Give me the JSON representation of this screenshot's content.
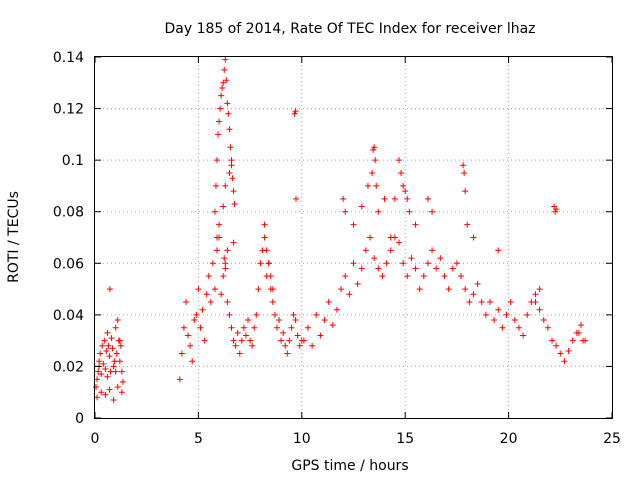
{
  "chart_data": {
    "type": "scatter",
    "title": "Day 185 of 2014, Rate Of TEC Index for receiver lhaz",
    "xlabel": "GPS time / hours",
    "ylabel": "ROTI / TECUs",
    "xlim": [
      0,
      25
    ],
    "ylim": [
      0,
      0.14
    ],
    "xticks": [
      0,
      5,
      10,
      15,
      20,
      25
    ],
    "yticks": [
      0,
      0.02,
      0.04,
      0.06,
      0.08,
      0.1,
      0.12,
      0.14
    ],
    "grid": true,
    "marker": "+",
    "color": "#ff0000",
    "series": [
      {
        "x": [
          0.05,
          0.1,
          0.15,
          0.2,
          0.25,
          0.3,
          0.35,
          0.4,
          0.45,
          0.5,
          0.55,
          0.6,
          0.65,
          0.7,
          0.75,
          0.8,
          0.85,
          0.9,
          0.95,
          1.0,
          1.05,
          1.1,
          1.15,
          1.2,
          1.25,
          1.3,
          1.35,
          0.1,
          0.3,
          0.5,
          0.7,
          0.72,
          0.9,
          1.1,
          1.3,
          0.2,
          0.6,
          1.0,
          1.2,
          4.1,
          4.2,
          4.3,
          4.4,
          4.5,
          4.6,
          4.7,
          4.8,
          4.9,
          5.0,
          5.1,
          5.2,
          5.3,
          5.4,
          5.5,
          5.6,
          5.7,
          5.8,
          5.9,
          6.0,
          6.1,
          6.2,
          6.3,
          6.4,
          6.5,
          6.6,
          6.7,
          6.8,
          6.9,
          7.0,
          7.1,
          7.2,
          7.3,
          7.4,
          7.5,
          7.6,
          7.7,
          7.8,
          7.9,
          8.0,
          8.1,
          8.2,
          8.3,
          8.4,
          8.5,
          8.6,
          8.7,
          8.8,
          8.9,
          9.0,
          9.1,
          9.2,
          9.3,
          9.4,
          9.5,
          9.6,
          9.7,
          9.8,
          9.9,
          10.0,
          5.8,
          5.85,
          5.9,
          5.95,
          6.0,
          6.05,
          6.1,
          6.15,
          6.2,
          6.25,
          6.3,
          6.35,
          6.4,
          6.45,
          6.5,
          6.55,
          6.6,
          6.65,
          6.7,
          6.75,
          5.9,
          6.0,
          6.2,
          6.3,
          6.5,
          6.6,
          6.7,
          6.25,
          6.3,
          6.4,
          8.2,
          8.3,
          8.4,
          8.5,
          8.6,
          9.65,
          9.7,
          9.72,
          10.1,
          10.3,
          10.5,
          10.7,
          10.9,
          11.1,
          11.3,
          11.5,
          11.7,
          11.9,
          12.1,
          12.3,
          12.5,
          12.7,
          12.9,
          13.1,
          13.3,
          13.5,
          13.7,
          13.9,
          14.1,
          14.3,
          14.5,
          14.7,
          14.9,
          15.1,
          15.3,
          15.5,
          15.7,
          15.9,
          16.1,
          16.3,
          16.5,
          16.7,
          16.9,
          17.1,
          17.3,
          17.5,
          17.7,
          17.9,
          18.1,
          18.3,
          18.5,
          18.7,
          18.9,
          19.1,
          19.3,
          19.5,
          19.7,
          19.9,
          20.1,
          20.3,
          20.5,
          20.7,
          20.9,
          21.1,
          21.3,
          21.5,
          21.7,
          21.9,
          22.1,
          22.3,
          22.5,
          22.7,
          22.9,
          23.1,
          23.3,
          23.5,
          23.7,
          12.0,
          12.1,
          12.5,
          12.9,
          13.2,
          13.4,
          13.45,
          13.5,
          13.55,
          13.6,
          13.7,
          14.0,
          14.3,
          14.5,
          14.7,
          14.8,
          14.9,
          15.0,
          15.1,
          15.2,
          15.5,
          16.1,
          16.3,
          17.8,
          17.85,
          17.9,
          18.0,
          18.3,
          19.5,
          21.3,
          21.5,
          22.2,
          22.25,
          22.3,
          23.4,
          23.6
        ],
        "y": [
          0.012,
          0.015,
          0.018,
          0.022,
          0.025,
          0.017,
          0.028,
          0.021,
          0.03,
          0.019,
          0.026,
          0.033,
          0.028,
          0.024,
          0.018,
          0.031,
          0.027,
          0.02,
          0.022,
          0.035,
          0.025,
          0.038,
          0.03,
          0.022,
          0.028,
          0.018,
          0.014,
          0.008,
          0.01,
          0.009,
          0.011,
          0.05,
          0.007,
          0.012,
          0.01,
          0.02,
          0.016,
          0.018,
          0.03,
          0.015,
          0.025,
          0.035,
          0.045,
          0.032,
          0.028,
          0.022,
          0.038,
          0.04,
          0.05,
          0.035,
          0.042,
          0.03,
          0.048,
          0.055,
          0.045,
          0.06,
          0.05,
          0.065,
          0.07,
          0.048,
          0.055,
          0.06,
          0.045,
          0.04,
          0.035,
          0.03,
          0.028,
          0.033,
          0.025,
          0.03,
          0.035,
          0.032,
          0.038,
          0.03,
          0.028,
          0.035,
          0.04,
          0.05,
          0.06,
          0.065,
          0.075,
          0.055,
          0.06,
          0.05,
          0.045,
          0.04,
          0.035,
          0.038,
          0.03,
          0.033,
          0.028,
          0.025,
          0.03,
          0.035,
          0.04,
          0.038,
          0.032,
          0.028,
          0.03,
          0.08,
          0.09,
          0.1,
          0.11,
          0.115,
          0.12,
          0.125,
          0.128,
          0.13,
          0.135,
          0.139,
          0.131,
          0.122,
          0.118,
          0.112,
          0.105,
          0.098,
          0.093,
          0.088,
          0.083,
          0.07,
          0.075,
          0.082,
          0.09,
          0.095,
          0.1,
          0.068,
          0.062,
          0.058,
          0.065,
          0.07,
          0.065,
          0.06,
          0.055,
          0.05,
          0.118,
          0.119,
          0.085,
          0.03,
          0.035,
          0.028,
          0.04,
          0.032,
          0.038,
          0.045,
          0.036,
          0.042,
          0.05,
          0.055,
          0.048,
          0.06,
          0.052,
          0.058,
          0.065,
          0.07,
          0.062,
          0.058,
          0.055,
          0.06,
          0.065,
          0.07,
          0.068,
          0.06,
          0.055,
          0.062,
          0.058,
          0.05,
          0.055,
          0.06,
          0.065,
          0.058,
          0.062,
          0.055,
          0.05,
          0.058,
          0.06,
          0.055,
          0.05,
          0.045,
          0.048,
          0.052,
          0.045,
          0.04,
          0.045,
          0.038,
          0.042,
          0.035,
          0.04,
          0.045,
          0.038,
          0.035,
          0.032,
          0.04,
          0.045,
          0.048,
          0.042,
          0.038,
          0.035,
          0.03,
          0.028,
          0.025,
          0.022,
          0.026,
          0.03,
          0.033,
          0.036,
          0.03,
          0.085,
          0.08,
          0.075,
          0.082,
          0.09,
          0.095,
          0.104,
          0.105,
          0.1,
          0.09,
          0.08,
          0.085,
          0.07,
          0.085,
          0.1,
          0.095,
          0.09,
          0.088,
          0.085,
          0.08,
          0.075,
          0.085,
          0.08,
          0.098,
          0.095,
          0.088,
          0.075,
          0.07,
          0.065,
          0.045,
          0.05,
          0.082,
          0.08,
          0.081,
          0.033,
          0.03
        ]
      }
    ]
  }
}
